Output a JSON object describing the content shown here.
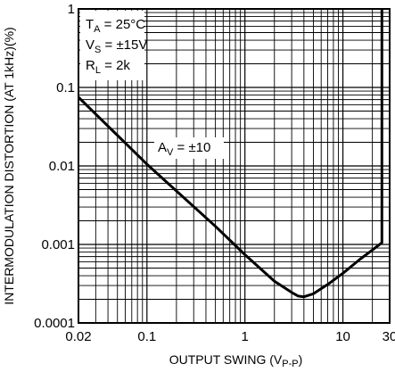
{
  "chart_data": {
    "type": "line",
    "xlabel": {
      "main": "OUTPUT SWING (V",
      "sub": "P-P",
      "tail": ")"
    },
    "ylabel": "INTERMODULATION DISTORTION (AT 1kHz)(%)",
    "xscale": "log",
    "yscale": "log",
    "xlim": [
      0.02,
      30
    ],
    "ylim": [
      0.0001,
      1
    ],
    "x_ticks": [
      {
        "value": 0.02,
        "label": "0.02"
      },
      {
        "value": 0.1,
        "label": "0.1"
      },
      {
        "value": 1,
        "label": "1"
      },
      {
        "value": 10,
        "label": "10"
      },
      {
        "value": 30,
        "label": "30"
      }
    ],
    "y_ticks": [
      {
        "value": 1,
        "label": "1"
      },
      {
        "value": 0.1,
        "label": "0.1"
      },
      {
        "value": 0.01,
        "label": "0.01"
      },
      {
        "value": 0.001,
        "label": "0.001"
      },
      {
        "value": 0.0001,
        "label": "0.0001"
      }
    ],
    "grid": true,
    "conditions": [
      {
        "main": "T",
        "sub": "A",
        "tail": " = 25°C"
      },
      {
        "main": "V",
        "sub": "S",
        "tail": " = ±15V"
      },
      {
        "main": "R",
        "sub": "L",
        "tail": " = 2k"
      }
    ],
    "series": [
      {
        "label": {
          "main": "A",
          "sub": "V",
          "tail": " = ±10"
        },
        "x": [
          0.02,
          0.1,
          0.5,
          1.0,
          2.0,
          3.0,
          3.5,
          4.0,
          5.0,
          7.0,
          10.0,
          15.0,
          20.0,
          25.0,
          25.0
        ],
        "y": [
          0.075,
          0.0105,
          0.0017,
          0.00074,
          0.00034,
          0.000245,
          0.00022,
          0.000215,
          0.000235,
          0.00031,
          0.00043,
          0.00065,
          0.00085,
          0.00105,
          1.0
        ]
      }
    ]
  }
}
